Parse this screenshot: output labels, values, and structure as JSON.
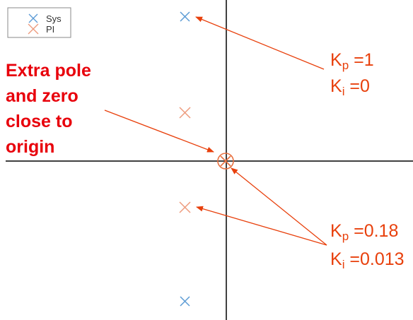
{
  "legend": {
    "entries": [
      {
        "label": "Sys",
        "color": "#5b9bd5"
      },
      {
        "label": "PI",
        "color": "#ed9a7c"
      }
    ]
  },
  "callout": {
    "lines": [
      "Extra pole",
      "and zero",
      "close to",
      "origin"
    ],
    "color": "#e8000b"
  },
  "params_top": {
    "kp_symbol": "K",
    "kp_sub": "p",
    "kp_value": " =1",
    "ki_symbol": "K",
    "ki_sub": "i",
    "ki_value": " =0"
  },
  "params_bottom": {
    "kp_symbol": "K",
    "kp_sub": "p",
    "kp_value": " =0.18",
    "ki_symbol": "K",
    "ki_sub": "i",
    "ki_value": " =0.013"
  },
  "colors": {
    "sys_pole": "#5b9bd5",
    "pi_pole": "#ed9a7c",
    "arrow": "#e8400c",
    "axis": "#000000"
  }
}
